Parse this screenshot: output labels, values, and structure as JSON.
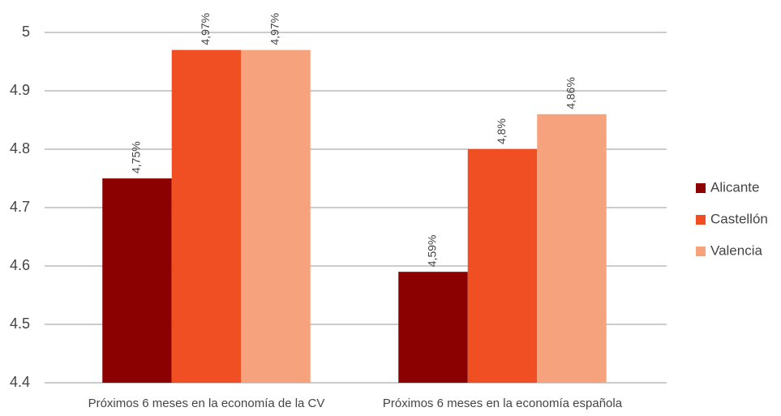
{
  "chart_data": {
    "type": "bar",
    "categories": [
      "Próximos 6 meses en la economía de la CV",
      "Próximos 6 meses en la economía española"
    ],
    "series": [
      {
        "name": "Alicante",
        "color": "#8b0000",
        "values": [
          4.75,
          4.59
        ],
        "value_labels": [
          "4,75%",
          "4,59%"
        ]
      },
      {
        "name": "Castellón",
        "color": "#f04e23",
        "values": [
          4.97,
          4.8
        ],
        "value_labels": [
          "4,97%",
          "4,8%"
        ]
      },
      {
        "name": "Valencia",
        "color": "#f6a27c",
        "values": [
          4.97,
          4.86
        ],
        "value_labels": [
          "4,97%",
          "4,86%"
        ]
      }
    ],
    "ylim": [
      4.4,
      5
    ],
    "yticks": [
      4.4,
      4.5,
      4.6,
      4.7,
      4.8,
      4.9,
      5
    ],
    "grid": true,
    "legend": "right"
  }
}
